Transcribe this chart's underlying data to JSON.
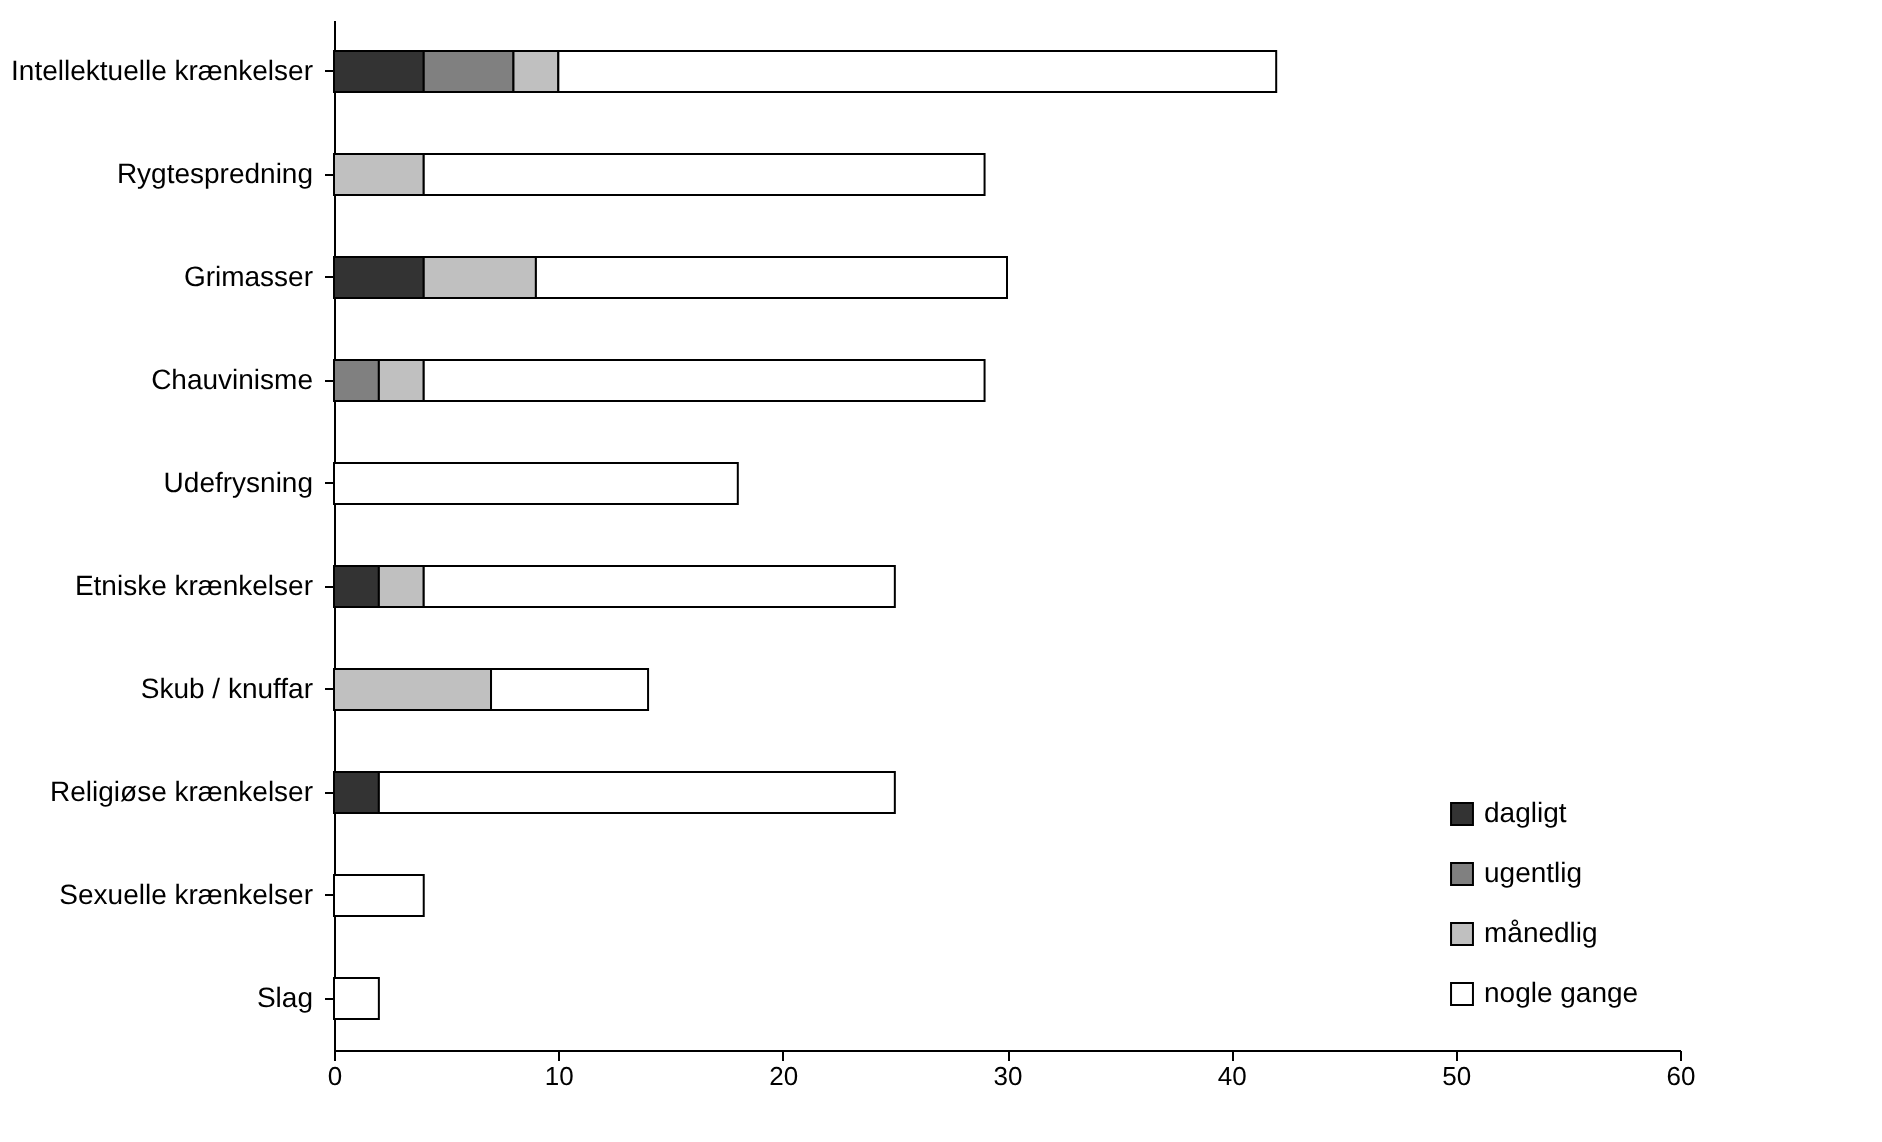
{
  "chart_data": {
    "type": "bar",
    "orientation": "horizontal",
    "stacked": true,
    "categories": [
      "Intellektuelle krænkelser",
      "Rygtespredning",
      "Grimasser",
      "Chauvinisme",
      "Udefrysning",
      "Etniske krænkelser",
      "Skub / knuffar",
      "Religiøse krænkelser",
      "Sexuelle krænkelser",
      "Slag"
    ],
    "series": [
      {
        "name": "dagligt",
        "color": "#333333",
        "values": [
          4,
          null,
          4,
          null,
          null,
          2,
          null,
          2,
          null,
          null
        ]
      },
      {
        "name": "ugentlig",
        "color": "#808080",
        "values": [
          4,
          null,
          null,
          2,
          null,
          null,
          null,
          null,
          null,
          null
        ]
      },
      {
        "name": "månedlig",
        "color": "#c0c0c0",
        "values": [
          2,
          4,
          5,
          2,
          null,
          2,
          7,
          null,
          null,
          null
        ]
      },
      {
        "name": "nogle gange",
        "color": "#ffffff",
        "values": [
          32,
          25,
          21,
          25,
          18,
          21,
          7,
          23,
          4,
          2
        ]
      }
    ],
    "xlim": [
      0,
      60
    ],
    "xticks": [
      0,
      10,
      20,
      30,
      40,
      50,
      60
    ],
    "grid": false,
    "legend": "bottom right"
  }
}
